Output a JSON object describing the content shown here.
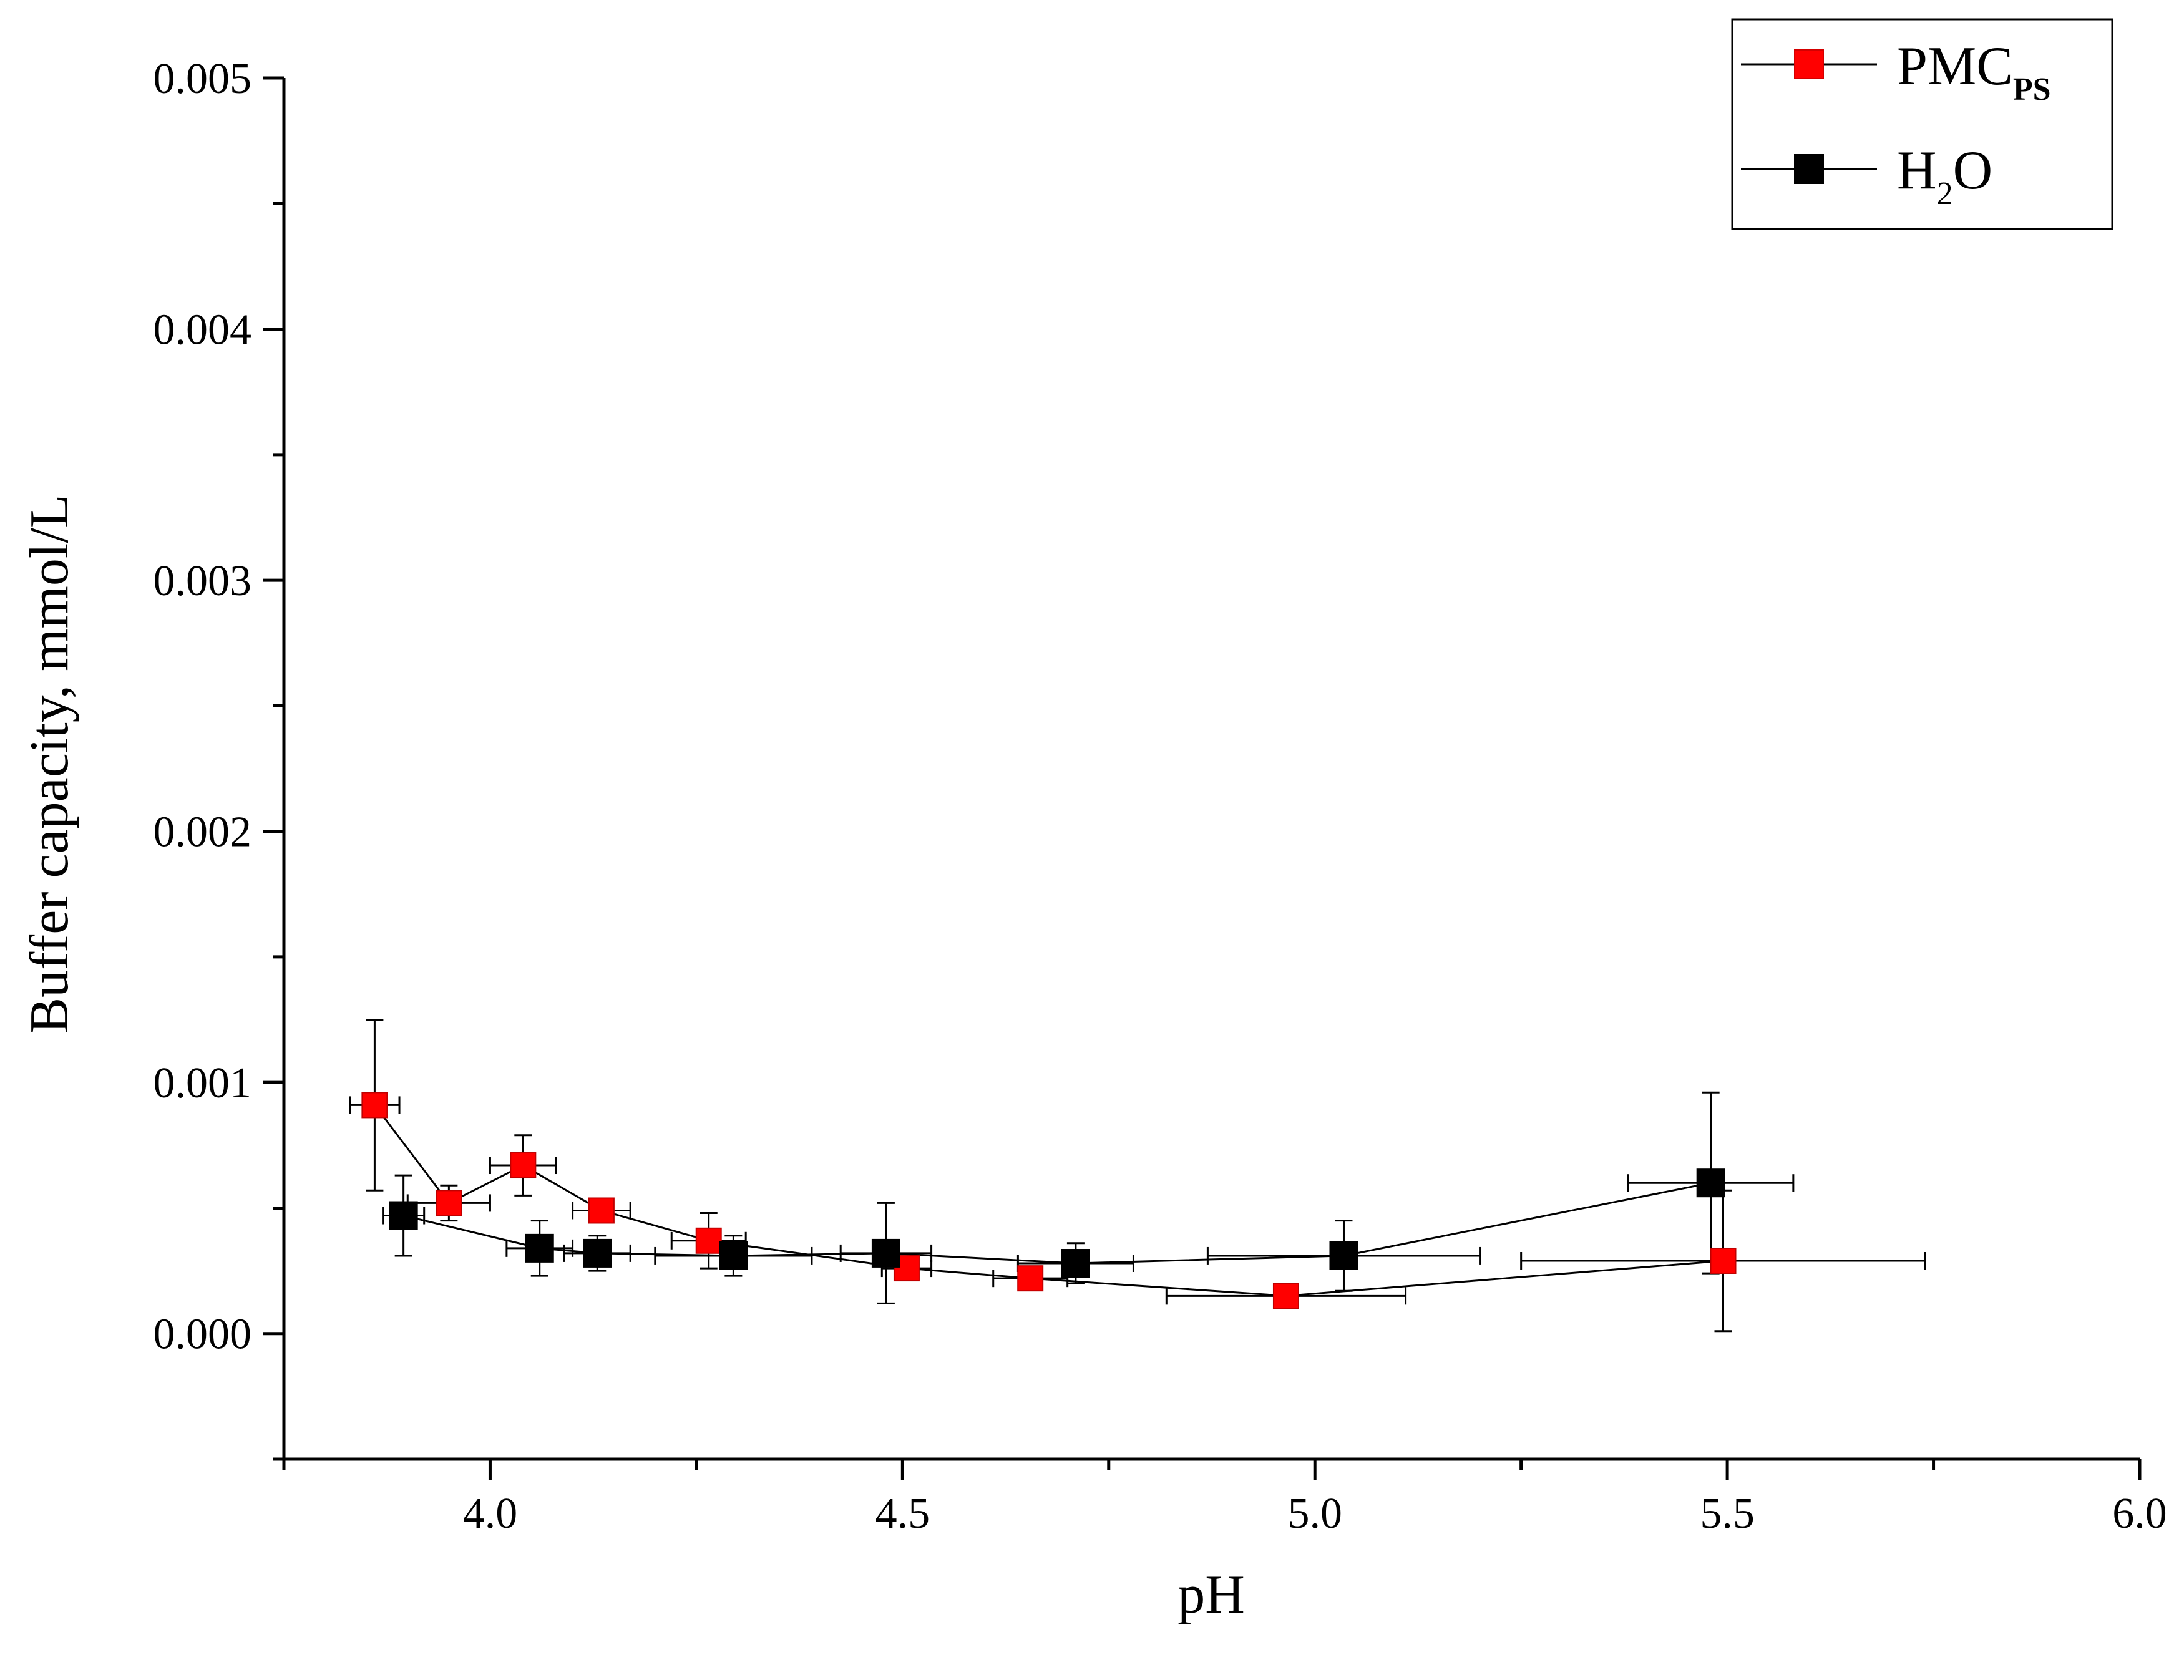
{
  "chart_data": {
    "type": "scatter",
    "title": "",
    "xlabel": "pH",
    "ylabel": "Buffer capacity, mmol/L",
    "xlim": [
      3.75,
      6.0
    ],
    "ylim": [
      -0.0005,
      0.005
    ],
    "x_ticks": [
      "4.0",
      "4.5",
      "5.0",
      "5.5",
      "6.0"
    ],
    "y_ticks": [
      "0.000",
      "0.001",
      "0.002",
      "0.003",
      "0.004",
      "0.005"
    ],
    "x_tick_values": [
      4.0,
      4.5,
      5.0,
      5.5,
      6.0
    ],
    "y_tick_values": [
      0.0,
      0.001,
      0.002,
      0.003,
      0.004,
      0.005
    ],
    "grid": false,
    "legend_position": "top-right",
    "legend": [
      {
        "label": "PMC",
        "subscript": "PS",
        "color": "#ff0000"
      },
      {
        "label": "H",
        "subscript": "2",
        "suffix": "O",
        "color": "#000000"
      }
    ],
    "series": [
      {
        "name": "PMC_PS",
        "color": "#ff0000",
        "points": [
          {
            "x": 3.86,
            "y": 0.00091,
            "xerr": 0.03,
            "yerr": 0.00034
          },
          {
            "x": 3.95,
            "y": 0.00052,
            "xerr": 0.05,
            "yerr": 7e-05
          },
          {
            "x": 4.04,
            "y": 0.00067,
            "xerr": 0.04,
            "yerr": 0.00012
          },
          {
            "x": 4.135,
            "y": 0.00049,
            "xerr": 0.035,
            "yerr": 4e-05
          },
          {
            "x": 4.265,
            "y": 0.00037,
            "xerr": 0.045,
            "yerr": 0.00011
          },
          {
            "x": 4.505,
            "y": 0.00026,
            "xerr": 0.03,
            "yerr": 3e-05
          },
          {
            "x": 4.655,
            "y": 0.00022,
            "xerr": 0.045,
            "yerr": 2e-05
          },
          {
            "x": 4.965,
            "y": 0.00015,
            "xerr": 0.145,
            "yerr": 3e-05
          },
          {
            "x": 5.495,
            "y": 0.00029,
            "xerr": 0.245,
            "yerr": 0.00028
          }
        ]
      },
      {
        "name": "H2O",
        "color": "#000000",
        "points": [
          {
            "x": 3.895,
            "y": 0.00047,
            "xerr": 0.025,
            "yerr": 0.00016
          },
          {
            "x": 4.06,
            "y": 0.00034,
            "xerr": 0.04,
            "yerr": 0.00011
          },
          {
            "x": 4.13,
            "y": 0.00032,
            "xerr": 0.04,
            "yerr": 7e-05
          },
          {
            "x": 4.295,
            "y": 0.00031,
            "xerr": 0.095,
            "yerr": 8e-05
          },
          {
            "x": 4.48,
            "y": 0.00032,
            "xerr": 0.055,
            "yerr": 0.0002
          },
          {
            "x": 4.71,
            "y": 0.00028,
            "xerr": 0.07,
            "yerr": 8e-05
          },
          {
            "x": 5.035,
            "y": 0.00031,
            "xerr": 0.165,
            "yerr": 0.00014
          },
          {
            "x": 5.48,
            "y": 0.0006,
            "xerr": 0.1,
            "yerr": 0.00036
          }
        ]
      }
    ]
  }
}
